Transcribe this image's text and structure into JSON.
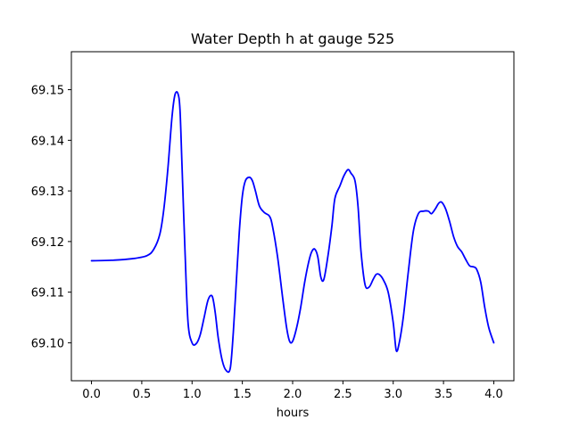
{
  "chart_data": {
    "type": "line",
    "title": "Water Depth h at gauge 525",
    "xlabel": "hours",
    "ylabel": "",
    "xlim": [
      -0.2,
      4.2
    ],
    "ylim": [
      69.0925,
      69.1575
    ],
    "grid": false,
    "xticks": [
      0.0,
      0.5,
      1.0,
      1.5,
      2.0,
      2.5,
      3.0,
      3.5,
      4.0
    ],
    "xtick_labels": [
      "0.0",
      "0.5",
      "1.0",
      "1.5",
      "2.0",
      "2.5",
      "3.0",
      "3.5",
      "4.0"
    ],
    "yticks": [
      69.1,
      69.11,
      69.12,
      69.13,
      69.14,
      69.15
    ],
    "ytick_labels": [
      "69.10",
      "69.11",
      "69.12",
      "69.13",
      "69.14",
      "69.15"
    ],
    "series": [
      {
        "color": "#0000ff",
        "x": [
          0.0,
          0.2,
          0.4,
          0.55,
          0.62,
          0.68,
          0.72,
          0.76,
          0.8,
          0.83,
          0.86,
          0.88,
          0.9,
          0.93,
          0.96,
          1.0,
          1.04,
          1.08,
          1.12,
          1.16,
          1.2,
          1.23,
          1.26,
          1.3,
          1.34,
          1.38,
          1.41,
          1.44,
          1.47,
          1.5,
          1.53,
          1.57,
          1.6,
          1.63,
          1.67,
          1.72,
          1.77,
          1.8,
          1.85,
          1.9,
          1.94,
          1.97,
          2.0,
          2.04,
          2.08,
          2.12,
          2.16,
          2.19,
          2.22,
          2.25,
          2.28,
          2.31,
          2.35,
          2.39,
          2.42,
          2.47,
          2.51,
          2.55,
          2.58,
          2.62,
          2.65,
          2.68,
          2.72,
          2.76,
          2.8,
          2.83,
          2.86,
          2.9,
          2.95,
          3.0,
          3.03,
          3.06,
          3.1,
          3.15,
          3.2,
          3.25,
          3.3,
          3.35,
          3.38,
          3.42,
          3.45,
          3.48,
          3.52,
          3.56,
          3.6,
          3.64,
          3.68,
          3.72,
          3.76,
          3.8,
          3.83,
          3.87,
          3.91,
          3.95,
          4.0
        ],
        "y": [
          69.1162,
          69.1163,
          69.1166,
          69.1172,
          69.1185,
          69.1215,
          69.1265,
          69.1345,
          69.1445,
          69.149,
          69.1492,
          69.146,
          69.135,
          69.118,
          69.104,
          69.1,
          69.0998,
          69.1015,
          69.105,
          69.1085,
          69.1092,
          69.106,
          69.101,
          69.0965,
          69.0945,
          69.095,
          69.102,
          69.112,
          69.122,
          69.129,
          69.132,
          69.1327,
          69.132,
          69.13,
          69.127,
          69.1257,
          69.125,
          69.123,
          69.117,
          69.109,
          69.103,
          69.1003,
          69.1003,
          69.103,
          69.107,
          69.112,
          69.116,
          69.118,
          69.1185,
          69.117,
          69.113,
          69.1125,
          69.117,
          69.123,
          69.1285,
          69.131,
          69.133,
          69.1342,
          69.1335,
          69.132,
          69.127,
          69.118,
          69.1115,
          69.111,
          69.1125,
          69.1135,
          69.1135,
          69.1125,
          69.11,
          69.104,
          69.0985,
          69.1,
          69.105,
          69.114,
          69.122,
          69.1255,
          69.126,
          69.126,
          69.1255,
          69.1265,
          69.1275,
          69.1278,
          69.1265,
          69.124,
          69.121,
          69.119,
          69.118,
          69.1165,
          69.1152,
          69.115,
          69.1145,
          69.112,
          69.107,
          69.103,
          69.1
        ]
      }
    ]
  }
}
